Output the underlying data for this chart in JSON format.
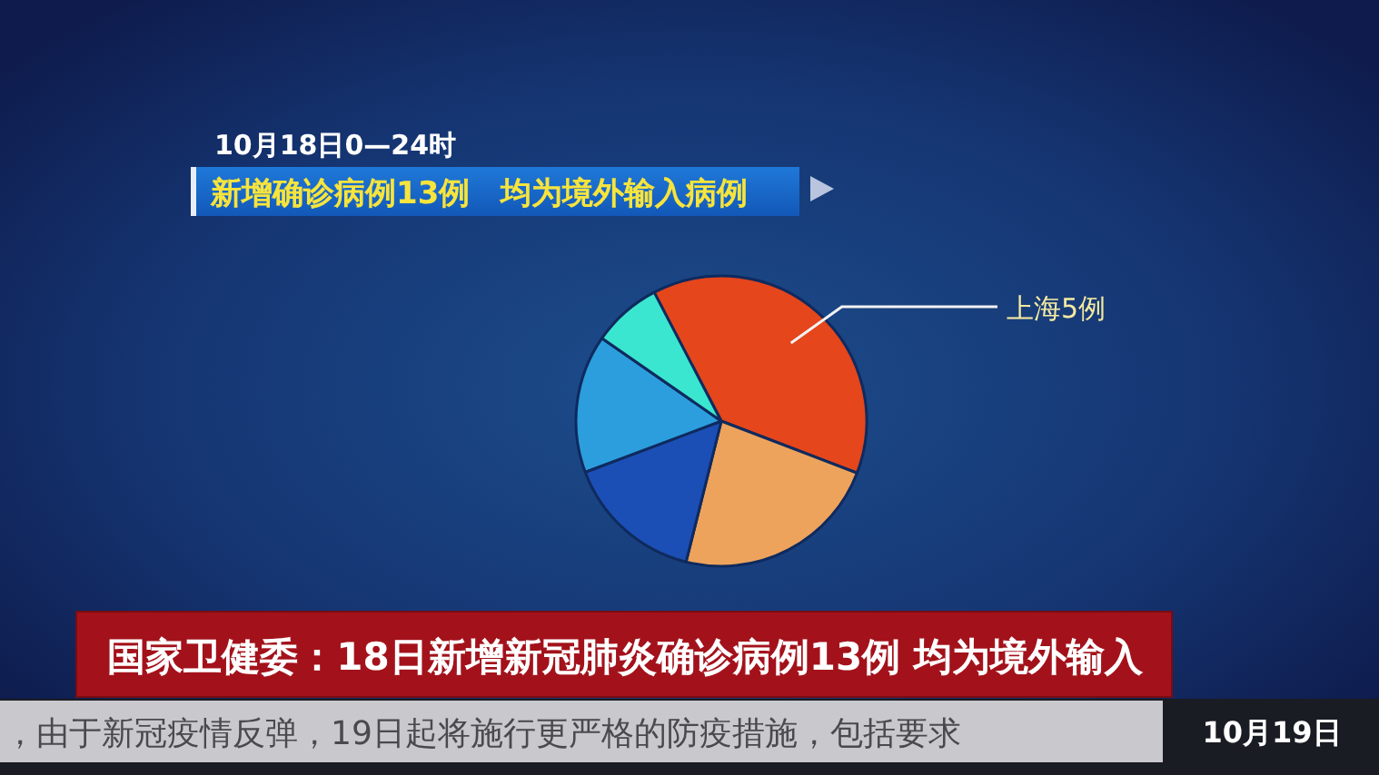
{
  "chart_data": {
    "type": "pie",
    "title": "新增确诊病例13例　均为境外输入病例",
    "subtitle": "10月18日0—24时",
    "categories": [
      "上海5例",
      null,
      null,
      null,
      null
    ],
    "values": [
      5,
      3,
      2,
      2,
      1
    ],
    "colors": [
      "#e5461c",
      "#eea35c",
      "#1c4fb5",
      "#2c9edd",
      "#3ae6cf"
    ],
    "annotations": [
      "国家卫健委：18日新增新冠肺炎确诊病例13例 均为境外输入",
      "，由于新冠疫情反弹，19日起将施行更严格的防疫措施，包括要求",
      "10月19日"
    ]
  }
}
